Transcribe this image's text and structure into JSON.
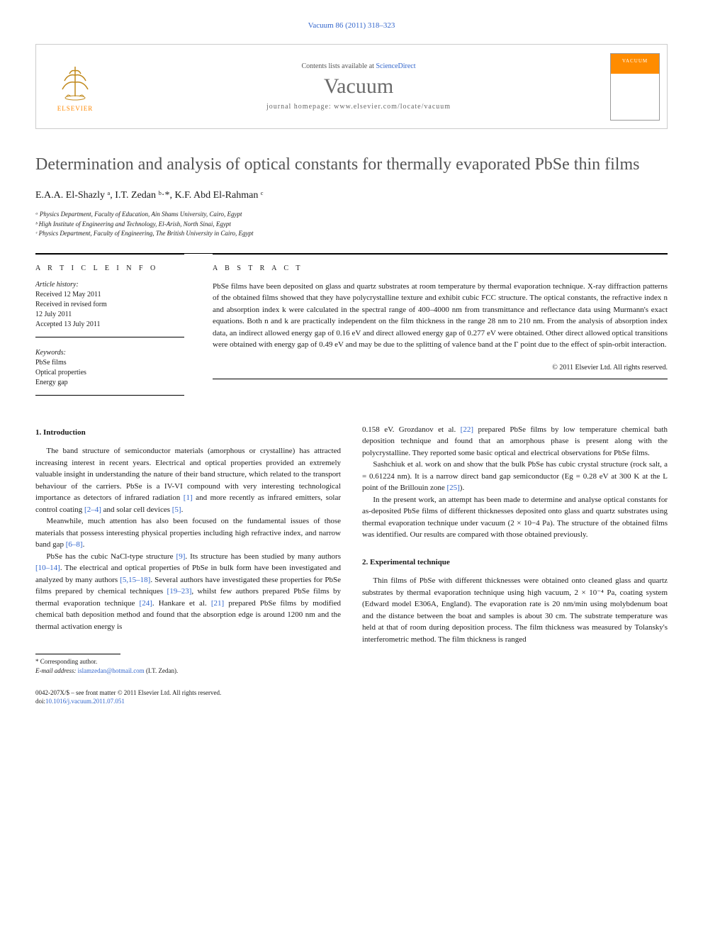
{
  "citation": "Vacuum 86 (2011) 318–323",
  "banner": {
    "publisher": "ELSEVIER",
    "contents_prefix": "Contents lists available at ",
    "contents_link": "ScienceDirect",
    "journal": "Vacuum",
    "homepage_prefix": "journal homepage: ",
    "homepage_url": "www.elsevier.com/locate/vacuum"
  },
  "title": "Determination and analysis of optical constants for thermally evaporated PbSe thin films",
  "authors_html": "E.A.A. El-Shazly ᵃ, I.T. Zedan ᵇ·*, K.F. Abd El-Rahman ᶜ",
  "affiliations": [
    "ᵃ Physics Department, Faculty of Education, Ain Shams University, Cairo, Egypt",
    "ᵇ High Institute of Engineering and Technology, El-Arish, North Sinai, Egypt",
    "ᶜ Physics Department, Faculty of Engineering, The British University in Cairo, Egypt"
  ],
  "article_info_heading": "A R T I C L E   I N F O",
  "abstract_heading": "A B S T R A C T",
  "history_label": "Article history:",
  "history": [
    "Received 12 May 2011",
    "Received in revised form",
    "12 July 2011",
    "Accepted 13 July 2011"
  ],
  "keywords_label": "Keywords:",
  "keywords": [
    "PbSe films",
    "Optical properties",
    "Energy gap"
  ],
  "abstract": "PbSe films have been deposited on glass and quartz substrates at room temperature by thermal evaporation technique. X-ray diffraction patterns of the obtained films showed that they have polycrystalline texture and exhibit cubic FCC structure. The optical constants, the refractive index n and absorption index k were calculated in the spectral range of 400–4000 nm from transmittance and reflectance data using Murmann's exact equations. Both n and k are practically independent on the film thickness in the range 28 nm to 210 nm. From the analysis of absorption index data, an indirect allowed energy gap of 0.16 eV and direct allowed energy gap of 0.277 eV were obtained. Other direct allowed optical transitions were obtained with energy gap of 0.49 eV and may be due to the splitting of valence band at the Γ point due to the effect of spin-orbit interaction.",
  "copyright": "© 2011 Elsevier Ltd. All rights reserved.",
  "sections": {
    "intro_heading": "1. Introduction",
    "exp_heading": "2. Experimental technique"
  },
  "body": {
    "col1": {
      "p1": "The band structure of semiconductor materials (amorphous or crystalline) has attracted increasing interest in recent years. Electrical and optical properties provided an extremely valuable insight in understanding the nature of their band structure, which related to the transport behaviour of the carriers. PbSe is a IV-VI compound with very interesting technological importance as detectors of infrared radiation [1] and more recently as infrared emitters, solar control coating [2–4] and solar cell devices [5].",
      "p2": "Meanwhile, much attention has also been focused on the fundamental issues of those materials that possess interesting physical properties including high refractive index, and narrow band gap [6–8].",
      "p3": "PbSe has the cubic NaCl-type structure [9]. Its structure has been studied by many authors [10–14]. The electrical and optical properties of PbSe in bulk form have been investigated and analyzed by many authors [5,15–18]. Several authors have investigated these properties for PbSe films prepared by chemical techniques [19–23], whilst few authors prepared PbSe films by thermal evaporation technique [24]. Hankare et al. [21] prepared PbSe films by modified chemical bath deposition method and found that the absorption edge is around 1200 nm and the thermal activation energy is"
    },
    "col2": {
      "p1": "0.158 eV. Grozdanov et al. [22] prepared PbSe films by low temperature chemical bath deposition technique and found that an amorphous phase is present along with the polycrystalline. They reported some basic optical and electrical observations for PbSe films.",
      "p2": "Sashchiuk et al. work on and show that the bulk PbSe has cubic crystal structure (rock salt, a = 0.61224 nm). It is a narrow direct band gap semiconductor (Eg = 0.28 eV at 300 K at the L point of the Brillouin zone [25]).",
      "p3": "In the present work, an attempt has been made to determine and analyse optical constants for as-deposited PbSe films of different thicknesses deposited onto glass and quartz substrates using thermal evaporation technique under vacuum (2 × 10−4 Pa). The structure of the obtained films was identified. Our results are compared with those obtained previously.",
      "p4": "Thin films of PbSe with different thicknesses were obtained onto cleaned glass and quartz substrates by thermal evaporation technique using high vacuum, 2 × 10⁻⁴ Pa, coating system (Edward model E306A, England). The evaporation rate is 20 nm/min using molybdenum boat and the distance between the boat and samples is about 30 cm. The substrate temperature was held at that of room during deposition process. The film thickness was measured by Tolansky's interferometric method. The film thickness is ranged"
    }
  },
  "footnote": {
    "corresponding": "* Corresponding author.",
    "email_label": "E-mail address: ",
    "email": "islamzedan@hotmail.com",
    "email_person": " (I.T. Zedan)."
  },
  "footer": {
    "line1": "0042-207X/$ – see front matter © 2011 Elsevier Ltd. All rights reserved.",
    "doi_label": "doi:",
    "doi": "10.1016/j.vacuum.2011.07.051"
  },
  "colors": {
    "link": "#3366cc",
    "publisher": "#ff8800",
    "title_gray": "#555555"
  }
}
